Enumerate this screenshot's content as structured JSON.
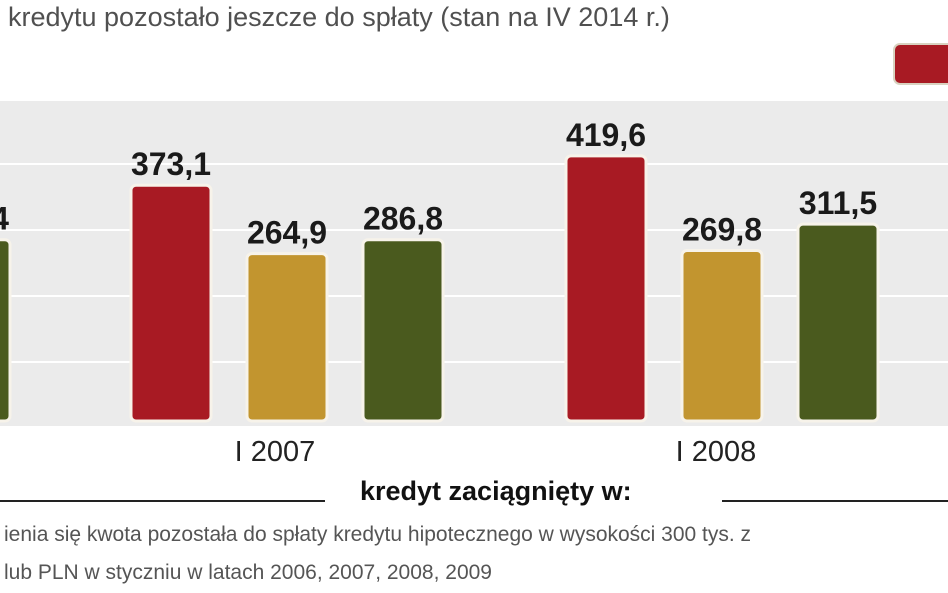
{
  "title": "kredytu pozostało jeszcze do spłaty (stan na IV 2014 r.)",
  "axis_caption": "kredyt zaciągnięty w:",
  "note_line1": "ienia się kwota pozostała do spłaty  kredytu hipotecznego w wysokości 300 tys. z",
  "note_line2": "lub PLN w styczniu w latach 2006, 2007, 2008, 2009",
  "colors": {
    "red": "#a81a23",
    "gold": "#c2952f",
    "olive": "#4a5a1e",
    "panel": "#ebebeb"
  },
  "chart_data": {
    "type": "bar",
    "categories": [
      "I 2007",
      "I 2008"
    ],
    "series": [
      {
        "color": "#a81a23",
        "values": [
          373.1,
          419.6
        ],
        "labels": [
          "373,1",
          "419,6"
        ]
      },
      {
        "color": "#c2952f",
        "values": [
          264.9,
          269.8
        ],
        "labels": [
          "264,9",
          "269,8"
        ]
      },
      {
        "color": "#4a5a1e",
        "values": [
          286.8,
          311.5
        ],
        "labels": [
          "286,8",
          "311,5"
        ]
      }
    ],
    "partial_label": "4",
    "ylim": [
      0,
      500
    ],
    "grid": true
  }
}
